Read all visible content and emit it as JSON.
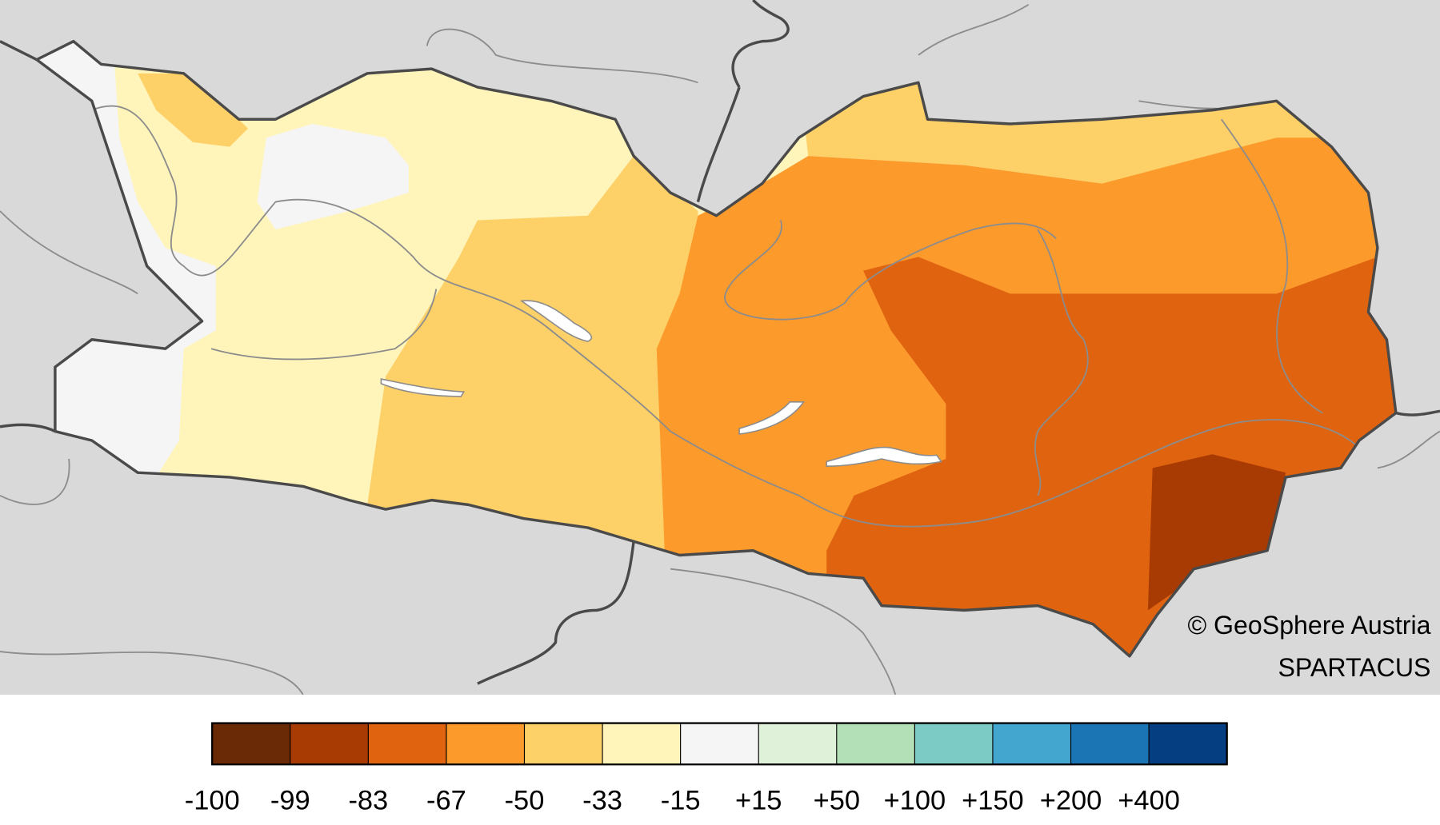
{
  "credits": {
    "line1": "© GeoSphere Austria",
    "line2": "SPARTACUS"
  },
  "legend": {
    "classes": [
      {
        "label": "-100",
        "color": "#6b2a06"
      },
      {
        "label": "-99",
        "color": "#a83a04"
      },
      {
        "label": "-83",
        "color": "#e0630f"
      },
      {
        "label": "-67",
        "color": "#fc9a2c"
      },
      {
        "label": "-50",
        "color": "#fdd068"
      },
      {
        "label": "-33",
        "color": "#fff5bb"
      },
      {
        "label": "-15",
        "color": "#f5f5f5"
      },
      {
        "label": "+15",
        "color": "#dff1d8"
      },
      {
        "label": "+50",
        "color": "#b4e0b8"
      },
      {
        "label": "+100",
        "color": "#7ccbc4"
      },
      {
        "label": "+150",
        "color": "#43a6cf"
      },
      {
        "label": "+200",
        "color": "#1b74b4"
      },
      {
        "label": "+400",
        "color": "#053f82"
      }
    ]
  }
}
